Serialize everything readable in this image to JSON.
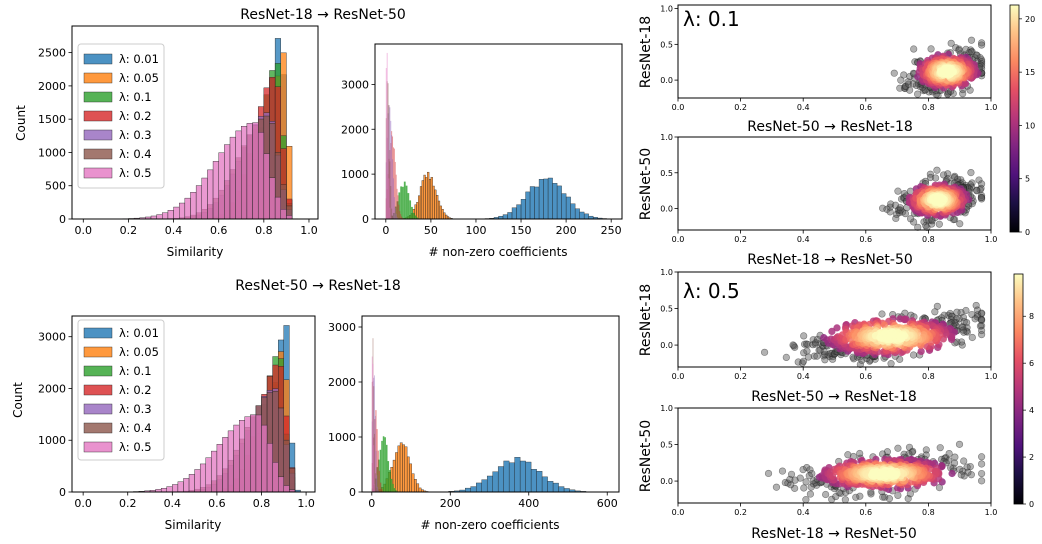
{
  "colors": {
    "0.01": "#1f77b4",
    "0.05": "#ff7f0e",
    "0.1": "#2ca02c",
    "0.2": "#d62728",
    "0.3": "#9467bd",
    "0.4": "#8c564b",
    "0.5": "#e377c2"
  },
  "lambdas": [
    "0.01",
    "0.05",
    "0.1",
    "0.2",
    "0.3",
    "0.4",
    "0.5"
  ],
  "chart_data": [
    {
      "id": "sim_r18_r50",
      "type": "bar",
      "suptitle": "ResNet-18 → ResNet-50",
      "xlabel": "Similarity",
      "ylabel": "Count",
      "xlim": [
        -0.05,
        1.04
      ],
      "ylim": [
        0,
        2900
      ],
      "xticks": [
        "0.0",
        "0.2",
        "0.4",
        "0.6",
        "0.8",
        "1.0"
      ],
      "yticks": [
        "0",
        "500",
        "1000",
        "1500",
        "2000",
        "2500"
      ],
      "legend": [
        "λ: 0.01",
        "λ: 0.05",
        "λ: 0.1",
        "λ: 0.2",
        "λ: 0.3",
        "λ: 0.4",
        "λ: 0.5"
      ],
      "series": [
        {
          "lambda": "0.01",
          "peak_x": 0.875,
          "peak": 2800,
          "width": 0.05,
          "min_x": 0.7,
          "max_x": 0.97
        },
        {
          "lambda": "0.05",
          "peak_x": 0.89,
          "peak": 2500,
          "width": 0.05,
          "min_x": 0.7,
          "max_x": 0.93
        },
        {
          "lambda": "0.1",
          "peak_x": 0.86,
          "peak": 2350,
          "width": 0.07,
          "min_x": 0.55,
          "max_x": 0.93
        },
        {
          "lambda": "0.2",
          "peak_x": 0.85,
          "peak": 2150,
          "width": 0.09,
          "min_x": 0.45,
          "max_x": 0.93
        },
        {
          "lambda": "0.3",
          "peak_x": 0.82,
          "peak": 1600,
          "width": 0.12,
          "min_x": 0.2,
          "max_x": 0.93
        },
        {
          "lambda": "0.4",
          "peak_x": 0.82,
          "peak": 1550,
          "width": 0.13,
          "min_x": 0.2,
          "max_x": 0.93
        },
        {
          "lambda": "0.5",
          "peak_x": 0.76,
          "peak": 1450,
          "width": 0.17,
          "min_x": 0.15,
          "max_x": 0.93
        }
      ]
    },
    {
      "id": "nnz_r18_r50",
      "type": "bar",
      "xlabel": "# non-zero coefficients",
      "ylabel": "",
      "xlim": [
        -12,
        262
      ],
      "ylim": [
        0,
        3900
      ],
      "xticks": [
        "0",
        "50",
        "100",
        "150",
        "200",
        "250"
      ],
      "yticks": [
        "0",
        "1000",
        "2000",
        "3000"
      ],
      "series": [
        {
          "lambda": "0.01",
          "center": 178,
          "sd": 22,
          "peak": 850,
          "binw": 5
        },
        {
          "lambda": "0.05",
          "center": 47,
          "sd": 9,
          "peak": 1000,
          "binw": 2
        },
        {
          "lambda": "0.1",
          "center": 20,
          "sd": 6,
          "peak": 800,
          "binw": 2
        },
        {
          "lambda": "0.2",
          "center": 7,
          "sd": 4,
          "peak": 1800,
          "binw": 1
        },
        {
          "lambda": "0.3",
          "center": 4,
          "sd": 3,
          "peak": 2600,
          "binw": 1
        },
        {
          "lambda": "0.4",
          "center": 2,
          "sd": 2,
          "peak": 3100,
          "binw": 1
        },
        {
          "lambda": "0.5",
          "center": 1,
          "sd": 1.5,
          "peak": 3700,
          "binw": 1
        }
      ]
    },
    {
      "id": "sim_r50_r18",
      "type": "bar",
      "suptitle": "ResNet-50 → ResNet-18",
      "xlabel": "Similarity",
      "ylabel": "Count",
      "xlim": [
        -0.05,
        1.04
      ],
      "ylim": [
        0,
        3400
      ],
      "xticks": [
        "0.0",
        "0.2",
        "0.4",
        "0.6",
        "0.8",
        "1.0"
      ],
      "yticks": [
        "0",
        "1000",
        "2000",
        "3000"
      ],
      "legend": [
        "λ: 0.01",
        "λ: 0.05",
        "λ: 0.1",
        "λ: 0.2",
        "λ: 0.3",
        "λ: 0.4",
        "λ: 0.5"
      ],
      "series": [
        {
          "lambda": "0.01",
          "peak_x": 0.91,
          "peak": 3250,
          "width": 0.05,
          "min_x": 0.7,
          "max_x": 0.97
        },
        {
          "lambda": "0.05",
          "peak_x": 0.9,
          "peak": 2800,
          "width": 0.05,
          "min_x": 0.7,
          "max_x": 0.96
        },
        {
          "lambda": "0.1",
          "peak_x": 0.88,
          "peak": 2700,
          "width": 0.07,
          "min_x": 0.55,
          "max_x": 0.96
        },
        {
          "lambda": "0.2",
          "peak_x": 0.88,
          "peak": 2500,
          "width": 0.09,
          "min_x": 0.4,
          "max_x": 0.96
        },
        {
          "lambda": "0.3",
          "peak_x": 0.86,
          "peak": 2000,
          "width": 0.12,
          "min_x": 0.2,
          "max_x": 0.96
        },
        {
          "lambda": "0.4",
          "peak_x": 0.86,
          "peak": 1950,
          "width": 0.13,
          "min_x": 0.2,
          "max_x": 0.96
        },
        {
          "lambda": "0.5",
          "peak_x": 0.78,
          "peak": 1500,
          "width": 0.17,
          "min_x": 0.2,
          "max_x": 0.96
        }
      ]
    },
    {
      "id": "nnz_r50_r18",
      "type": "bar",
      "xlabel": "# non-zero coefficients",
      "ylabel": "",
      "xlim": [
        -25,
        630
      ],
      "ylim": [
        0,
        3200
      ],
      "xticks": [
        "0",
        "200",
        "400",
        "600"
      ],
      "yticks": [
        "0",
        "1000",
        "2000",
        "3000"
      ],
      "series": [
        {
          "lambda": "0.01",
          "center": 370,
          "sd": 60,
          "peak": 580,
          "binw": 14
        },
        {
          "lambda": "0.05",
          "center": 75,
          "sd": 22,
          "peak": 880,
          "binw": 6
        },
        {
          "lambda": "0.1",
          "center": 30,
          "sd": 12,
          "peak": 1000,
          "binw": 4
        },
        {
          "lambda": "0.2",
          "center": 10,
          "sd": 6,
          "peak": 1500,
          "binw": 3
        },
        {
          "lambda": "0.3",
          "center": 5,
          "sd": 4,
          "peak": 2200,
          "binw": 2
        },
        {
          "lambda": "0.4",
          "center": 3,
          "sd": 3,
          "peak": 2600,
          "binw": 2
        },
        {
          "lambda": "0.5",
          "center": 2,
          "sd": 2,
          "peak": 2900,
          "binw": 2
        }
      ]
    },
    {
      "id": "sc_l01_a",
      "type": "scatter",
      "annotation": "λ: 0.1",
      "xlabel": "ResNet-50 → ResNet-18",
      "ylabel": "ResNet-18",
      "xlim": [
        0,
        1
      ],
      "ylim": [
        -0.25,
        1.05
      ],
      "xticks": [
        "0.0",
        "0.2",
        "0.4",
        "0.6",
        "0.8",
        "1.0"
      ],
      "yticks": [
        "0.0",
        "0.5",
        "1.0"
      ],
      "cloud": {
        "cx": 0.86,
        "cy": 0.12,
        "sx": 0.06,
        "sy": 0.15,
        "rho": 0.35,
        "n": 420,
        "seed": 11
      }
    },
    {
      "id": "sc_l01_b",
      "type": "scatter",
      "xlabel": "ResNet-18 → ResNet-50",
      "ylabel": "ResNet-50",
      "xlim": [
        0,
        1
      ],
      "ylim": [
        -0.3,
        1.0
      ],
      "xticks": [
        "0.0",
        "0.2",
        "0.4",
        "0.6",
        "0.8",
        "1.0"
      ],
      "yticks": [
        "0.0",
        "0.5",
        "1.0"
      ],
      "cloud": {
        "cx": 0.83,
        "cy": 0.12,
        "sx": 0.06,
        "sy": 0.14,
        "rho": 0.25,
        "n": 420,
        "seed": 23
      }
    },
    {
      "id": "sc_l05_a",
      "type": "scatter",
      "annotation": "λ: 0.5",
      "xlabel": "ResNet-50 → ResNet-18",
      "ylabel": "ResNet-18",
      "xlim": [
        0,
        1
      ],
      "ylim": [
        -0.3,
        1.0
      ],
      "xticks": [
        "0.0",
        "0.2",
        "0.4",
        "0.6",
        "0.8",
        "1.0"
      ],
      "yticks": [
        "0.0",
        "0.5",
        "1.0"
      ],
      "cloud": {
        "cx": 0.68,
        "cy": 0.12,
        "sx": 0.13,
        "sy": 0.16,
        "rho": 0.55,
        "n": 560,
        "seed": 37
      }
    },
    {
      "id": "sc_l05_b",
      "type": "scatter",
      "xlabel": "ResNet-18 → ResNet-50",
      "ylabel": "ResNet-50",
      "xlim": [
        0,
        1
      ],
      "ylim": [
        -0.3,
        1.0
      ],
      "xticks": [
        "0.0",
        "0.2",
        "0.4",
        "0.6",
        "0.8",
        "1.0"
      ],
      "yticks": [
        "0.0",
        "0.5",
        "1.0"
      ],
      "cloud": {
        "cx": 0.66,
        "cy": 0.1,
        "sx": 0.13,
        "sy": 0.13,
        "rho": 0.35,
        "n": 560,
        "seed": 53
      }
    },
    {
      "id": "cbar_top",
      "type": "heatmap",
      "colorbar_min": 0,
      "colorbar_max": 21.3,
      "ticks": [
        "0",
        "5",
        "10",
        "15",
        "20"
      ]
    },
    {
      "id": "cbar_bottom",
      "type": "heatmap",
      "colorbar_min": 0,
      "colorbar_max": 9.8,
      "ticks": [
        "0",
        "2",
        "4",
        "6",
        "8"
      ]
    }
  ]
}
